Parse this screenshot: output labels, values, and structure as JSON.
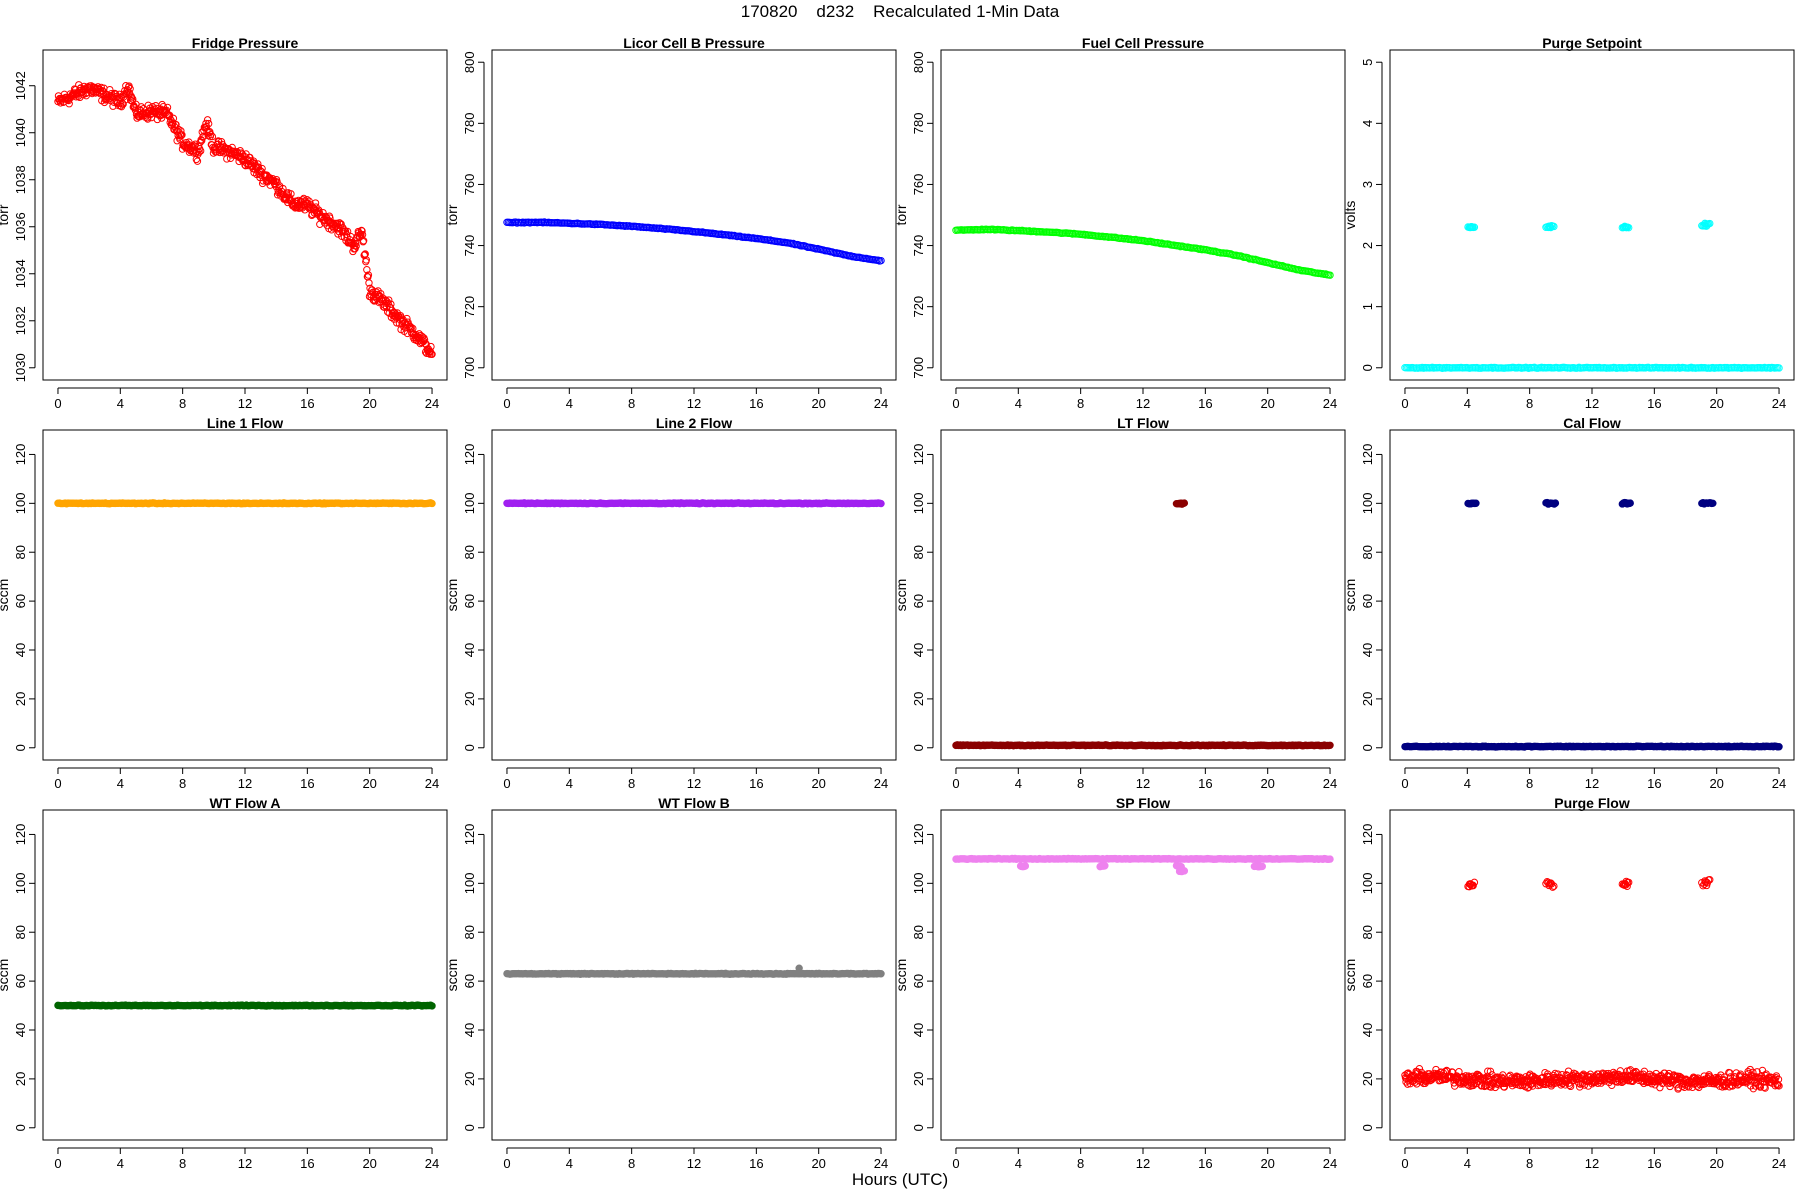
{
  "page": {
    "title": "170820    d232    Recalculated 1-Min Data",
    "xlabel": "Hours (UTC)"
  },
  "chart_data": [
    {
      "type": "scatter",
      "title": "Fridge Pressure",
      "ylabel": "torr",
      "xlim": [
        0,
        24
      ],
      "ylim": [
        1030,
        1043
      ],
      "xticks": [
        0,
        4,
        8,
        12,
        16,
        20,
        24
      ],
      "yticks": [
        1030,
        1032,
        1034,
        1036,
        1038,
        1040,
        1042
      ],
      "color": "#ff0000",
      "marker": "open",
      "series": [
        {
          "x": [
            0,
            1,
            2,
            3,
            4,
            4.5,
            5,
            6,
            7,
            8,
            9,
            9.5,
            10,
            11,
            12,
            13,
            14,
            15,
            16,
            17,
            18,
            19,
            19.5,
            20,
            21,
            22,
            23,
            24
          ],
          "values": [
            1041.3,
            1041.6,
            1041.9,
            1041.6,
            1041.3,
            1042.0,
            1040.8,
            1040.9,
            1040.8,
            1039.6,
            1039.2,
            1040.4,
            1039.4,
            1039.2,
            1038.9,
            1038.3,
            1037.8,
            1037.0,
            1036.9,
            1036.4,
            1036.0,
            1035.2,
            1035.8,
            1033.3,
            1032.7,
            1032.0,
            1031.4,
            1030.6
          ]
        }
      ]
    },
    {
      "type": "scatter",
      "title": "Licor Cell B Pressure",
      "ylabel": "torr",
      "xlim": [
        0,
        24
      ],
      "ylim": [
        700,
        800
      ],
      "xticks": [
        0,
        4,
        8,
        12,
        16,
        20,
        24
      ],
      "yticks": [
        700,
        720,
        740,
        760,
        780,
        800
      ],
      "color": "#0000ff",
      "marker": "open",
      "series": [
        {
          "x": [
            0,
            2,
            4,
            6,
            8,
            10,
            12,
            14,
            16,
            18,
            20,
            22,
            24
          ],
          "values": [
            747.5,
            747.6,
            747.3,
            746.9,
            746.3,
            745.5,
            744.6,
            743.5,
            742.3,
            740.9,
            738.8,
            736.6,
            735.0
          ]
        }
      ]
    },
    {
      "type": "scatter",
      "title": "Fuel Cell Pressure",
      "ylabel": "torr",
      "xlim": [
        0,
        24
      ],
      "ylim": [
        700,
        800
      ],
      "xticks": [
        0,
        4,
        8,
        12,
        16,
        20,
        24
      ],
      "yticks": [
        700,
        720,
        740,
        760,
        780,
        800
      ],
      "color": "#00ff00",
      "marker": "open",
      "series": [
        {
          "x": [
            0,
            2,
            4,
            6,
            8,
            10,
            12,
            14,
            16,
            18,
            20,
            22,
            24
          ],
          "values": [
            745.0,
            745.3,
            744.9,
            744.4,
            743.7,
            742.7,
            741.6,
            740.1,
            738.6,
            736.8,
            734.4,
            732.0,
            730.3
          ]
        }
      ]
    },
    {
      "type": "scatter",
      "title": "Purge Setpoint",
      "ylabel": "volts",
      "xlim": [
        0,
        24
      ],
      "ylim": [
        0,
        5
      ],
      "xticks": [
        0,
        4,
        8,
        12,
        16,
        20,
        24
      ],
      "yticks": [
        0,
        1,
        2,
        3,
        4,
        5
      ],
      "color": "#00ffff",
      "marker": "open",
      "series": [
        {
          "x": [
            0,
            4,
            8,
            12,
            16,
            20,
            24
          ],
          "values": [
            0,
            0,
            0,
            0,
            0,
            0,
            0
          ]
        },
        {
          "x": [
            4.2,
            4.3,
            9.2,
            9.4,
            14.1,
            14.2,
            19.2,
            19.4
          ],
          "values": [
            2.3,
            2.3,
            2.3,
            2.32,
            2.3,
            2.3,
            2.32,
            2.36
          ]
        }
      ]
    },
    {
      "type": "scatter",
      "title": "Line 1 Flow",
      "ylabel": "sccm",
      "xlim": [
        0,
        24
      ],
      "ylim": [
        0,
        125
      ],
      "xticks": [
        0,
        4,
        8,
        12,
        16,
        20,
        24
      ],
      "yticks": [
        0,
        20,
        40,
        60,
        80,
        100,
        120
      ],
      "color": "#ffa500",
      "marker": "filled",
      "series": [
        {
          "x": [
            0,
            4,
            8,
            12,
            16,
            20,
            24
          ],
          "values": [
            100,
            100,
            100,
            100,
            100,
            100,
            100
          ]
        }
      ]
    },
    {
      "type": "scatter",
      "title": "Line 2 Flow",
      "ylabel": "sccm",
      "xlim": [
        0,
        24
      ],
      "ylim": [
        0,
        125
      ],
      "xticks": [
        0,
        4,
        8,
        12,
        16,
        20,
        24
      ],
      "yticks": [
        0,
        20,
        40,
        60,
        80,
        100,
        120
      ],
      "color": "#a020f0",
      "marker": "filled",
      "series": [
        {
          "x": [
            0,
            4,
            8,
            12,
            16,
            20,
            24
          ],
          "values": [
            100,
            100,
            100,
            100,
            100,
            100,
            100
          ]
        }
      ]
    },
    {
      "type": "scatter",
      "title": "LT Flow",
      "ylabel": "sccm",
      "xlim": [
        0,
        24
      ],
      "ylim": [
        0,
        125
      ],
      "xticks": [
        0,
        4,
        8,
        12,
        16,
        20,
        24
      ],
      "yticks": [
        0,
        20,
        40,
        60,
        80,
        100,
        120
      ],
      "color": "#8b0000",
      "marker": "filled",
      "series": [
        {
          "x": [
            0,
            4,
            8,
            12,
            14,
            16,
            20,
            24
          ],
          "values": [
            1,
            1,
            1,
            1,
            1,
            1,
            1,
            1
          ]
        },
        {
          "x": [
            14.3,
            14.5
          ],
          "values": [
            100,
            100
          ]
        }
      ]
    },
    {
      "type": "scatter",
      "title": "Cal Flow",
      "ylabel": "sccm",
      "xlim": [
        0,
        24
      ],
      "ylim": [
        0,
        125
      ],
      "xticks": [
        0,
        4,
        8,
        12,
        16,
        20,
        24
      ],
      "yticks": [
        0,
        20,
        40,
        60,
        80,
        100,
        120
      ],
      "color": "#000080",
      "marker": "filled",
      "series": [
        {
          "x": [
            0,
            4,
            8,
            12,
            16,
            20,
            24
          ],
          "values": [
            0.5,
            0.5,
            0.5,
            0.5,
            0.5,
            0.5,
            0.5
          ]
        },
        {
          "x": [
            4.2,
            4.4,
            9.2,
            9.5,
            14.1,
            14.3,
            19.2,
            19.6
          ],
          "values": [
            100,
            100,
            100,
            100,
            100,
            100,
            100,
            100
          ]
        }
      ]
    },
    {
      "type": "scatter",
      "title": "WT Flow A",
      "ylabel": "sccm",
      "xlim": [
        0,
        24
      ],
      "ylim": [
        0,
        125
      ],
      "xticks": [
        0,
        4,
        8,
        12,
        16,
        20,
        24
      ],
      "yticks": [
        0,
        20,
        40,
        60,
        80,
        100,
        120
      ],
      "color": "#006400",
      "marker": "filled",
      "series": [
        {
          "x": [
            0,
            4,
            8,
            12,
            16,
            20,
            24
          ],
          "values": [
            50,
            50,
            50,
            50,
            50,
            50,
            50
          ]
        }
      ]
    },
    {
      "type": "scatter",
      "title": "WT Flow B",
      "ylabel": "sccm",
      "xlim": [
        0,
        24
      ],
      "ylim": [
        0,
        125
      ],
      "xticks": [
        0,
        4,
        8,
        12,
        16,
        20,
        24
      ],
      "yticks": [
        0,
        20,
        40,
        60,
        80,
        100,
        120
      ],
      "color": "#808080",
      "marker": "filled",
      "series": [
        {
          "x": [
            0,
            4,
            8,
            12,
            16,
            20,
            24
          ],
          "values": [
            63,
            63,
            63,
            63,
            63,
            63,
            63
          ]
        },
        {
          "x": [
            18.9
          ],
          "values": [
            65
          ]
        }
      ]
    },
    {
      "type": "scatter",
      "title": "SP Flow",
      "ylabel": "sccm",
      "xlim": [
        0,
        24
      ],
      "ylim": [
        0,
        125
      ],
      "xticks": [
        0,
        4,
        8,
        12,
        16,
        20,
        24
      ],
      "yticks": [
        0,
        20,
        40,
        60,
        80,
        100,
        120
      ],
      "color": "#ee82ee",
      "marker": "filled",
      "series": [
        {
          "x": [
            0,
            4,
            8,
            12,
            16,
            20,
            24
          ],
          "values": [
            110,
            110,
            110,
            110,
            110,
            110,
            110
          ]
        },
        {
          "x": [
            4.3,
            9.4,
            14.3,
            14.5,
            19.3,
            19.5
          ],
          "values": [
            107,
            107,
            107,
            105,
            107,
            107
          ]
        }
      ]
    },
    {
      "type": "scatter",
      "title": "Purge Flow",
      "ylabel": "sccm",
      "xlim": [
        0,
        24
      ],
      "ylim": [
        0,
        125
      ],
      "xticks": [
        0,
        4,
        8,
        12,
        16,
        20,
        24
      ],
      "yticks": [
        0,
        20,
        40,
        60,
        80,
        100,
        120
      ],
      "color": "#ff0000",
      "marker": "open",
      "series": [
        {
          "x": [
            0,
            2,
            4,
            6,
            8,
            10,
            12,
            14,
            16,
            18,
            20,
            22,
            24
          ],
          "values": [
            20,
            21,
            20,
            19,
            19,
            20,
            20,
            21,
            20,
            19,
            19,
            20,
            19
          ]
        },
        {
          "x": [
            4.2,
            4.3,
            9.2,
            9.4,
            14.1,
            14.2,
            19.2,
            19.4
          ],
          "values": [
            99,
            100,
            100,
            99,
            99,
            100,
            100,
            101
          ]
        }
      ]
    }
  ]
}
